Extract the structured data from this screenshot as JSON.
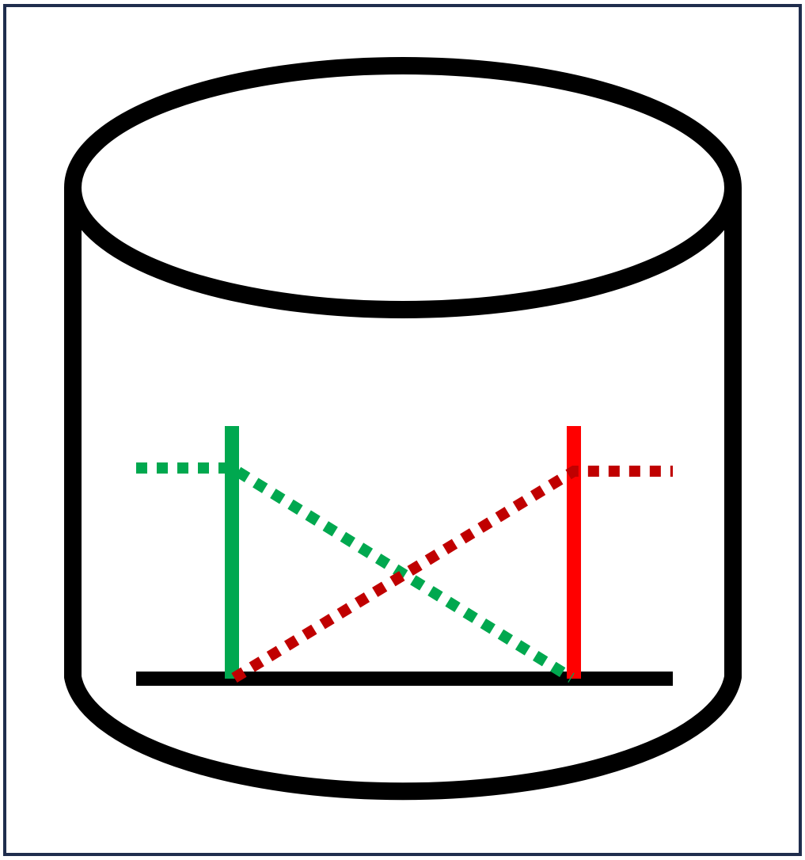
{
  "colors": {
    "frame_border": "#1f2d4d",
    "outline": "#000000",
    "green_solid": "#00a84f",
    "green_dotted": "#00a84f",
    "red_solid": "#ff0000",
    "red_dotted": "#c00000"
  },
  "shapes": {
    "container": "cylinder",
    "base_line": "horizontal-line",
    "left_post": "vertical-line",
    "right_post": "vertical-line",
    "green_path": "dotted-line",
    "red_path": "dotted-line"
  }
}
